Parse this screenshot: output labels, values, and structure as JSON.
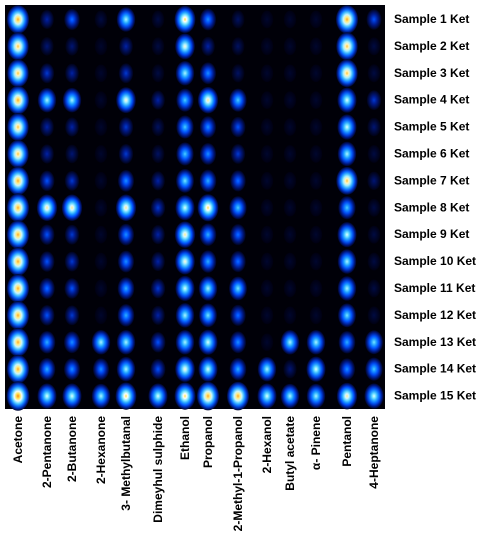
{
  "chart_data": {
    "type": "heatmap",
    "title": "",
    "xlabel": "",
    "ylabel": "",
    "colormap": [
      "#000010",
      "#001a8c",
      "#0050ff",
      "#1ea0ff",
      "#78e6ff",
      "#ffffff",
      "#ffe650",
      "#ff9a20",
      "#ff2a00"
    ],
    "columns": [
      "Acetone",
      "2-Pentanone",
      "2-Butanone",
      "2-Hexanone",
      "3- Methylbutanal",
      "Dimeyhul sulphide",
      "Ethanol",
      "Propanol",
      "2-Methyl-1-Propanol",
      "2-Hexanol",
      "Butyl acetate",
      "α- Pinene",
      "Pentanol",
      "4-Heptanone"
    ],
    "rows": [
      "Sample 1 Ket",
      "Sample 2 Ket",
      "Sample 3 Ket",
      "Sample 4 Ket",
      "Sample 5 Ket",
      "Sample 6 Ket",
      "Sample 7 Ket",
      "Sample 8 Ket",
      "Sample 9 Ket",
      "Sample 10 Ket",
      "Sample 11 Ket",
      "Sample 12 Ket",
      "Sample 13 Ket",
      "Sample 14 Ket",
      "Sample 15 Ket"
    ],
    "values": [
      [
        0.85,
        0.15,
        0.3,
        0.05,
        0.55,
        0.05,
        0.75,
        0.35,
        0.08,
        0.03,
        0.03,
        0.03,
        0.85,
        0.25
      ],
      [
        0.8,
        0.1,
        0.1,
        0.03,
        0.15,
        0.05,
        0.65,
        0.15,
        0.08,
        0.03,
        0.03,
        0.03,
        0.8,
        0.05
      ],
      [
        0.8,
        0.2,
        0.15,
        0.03,
        0.2,
        0.05,
        0.55,
        0.35,
        0.08,
        0.03,
        0.03,
        0.03,
        0.8,
        0.05
      ],
      [
        0.85,
        0.55,
        0.55,
        0.03,
        0.65,
        0.15,
        0.45,
        0.7,
        0.45,
        0.03,
        0.03,
        0.03,
        0.6,
        0.2
      ],
      [
        0.8,
        0.15,
        0.15,
        0.03,
        0.2,
        0.08,
        0.45,
        0.35,
        0.25,
        0.03,
        0.03,
        0.03,
        0.6,
        0.1
      ],
      [
        0.8,
        0.15,
        0.1,
        0.03,
        0.2,
        0.08,
        0.45,
        0.35,
        0.2,
        0.03,
        0.03,
        0.03,
        0.55,
        0.05
      ],
      [
        0.85,
        0.25,
        0.2,
        0.03,
        0.35,
        0.15,
        0.5,
        0.4,
        0.3,
        0.03,
        0.03,
        0.03,
        0.8,
        0.1
      ],
      [
        0.85,
        0.7,
        0.7,
        0.03,
        0.7,
        0.2,
        0.6,
        0.75,
        0.45,
        0.03,
        0.03,
        0.03,
        0.45,
        0.05
      ],
      [
        0.85,
        0.25,
        0.2,
        0.03,
        0.35,
        0.15,
        0.7,
        0.4,
        0.3,
        0.03,
        0.03,
        0.03,
        0.6,
        0.05
      ],
      [
        0.85,
        0.25,
        0.2,
        0.03,
        0.35,
        0.15,
        0.65,
        0.4,
        0.3,
        0.03,
        0.03,
        0.03,
        0.55,
        0.05
      ],
      [
        0.85,
        0.3,
        0.25,
        0.03,
        0.4,
        0.2,
        0.6,
        0.55,
        0.5,
        0.03,
        0.03,
        0.03,
        0.55,
        0.05
      ],
      [
        0.85,
        0.25,
        0.2,
        0.03,
        0.4,
        0.15,
        0.55,
        0.5,
        0.3,
        0.03,
        0.03,
        0.03,
        0.5,
        0.05
      ],
      [
        0.85,
        0.4,
        0.35,
        0.55,
        0.55,
        0.25,
        0.55,
        0.6,
        0.35,
        0.03,
        0.55,
        0.55,
        0.4,
        0.5
      ],
      [
        0.85,
        0.4,
        0.35,
        0.35,
        0.55,
        0.25,
        0.65,
        0.6,
        0.4,
        0.55,
        0.1,
        0.6,
        0.35,
        0.45
      ],
      [
        0.9,
        0.6,
        0.6,
        0.55,
        0.75,
        0.6,
        0.75,
        0.85,
        0.85,
        0.6,
        0.55,
        0.55,
        0.7,
        0.6
      ]
    ]
  }
}
